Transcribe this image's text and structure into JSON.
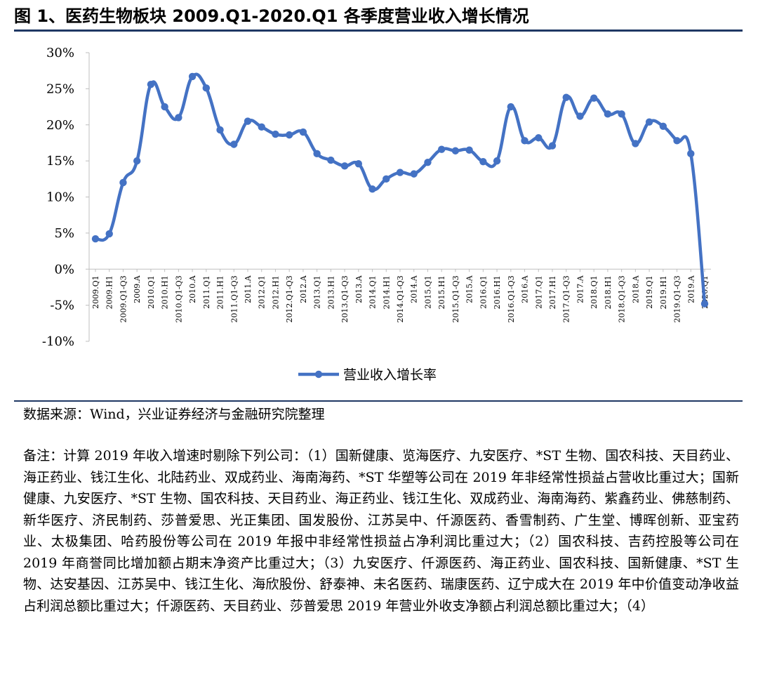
{
  "figure": {
    "title": "图 1、医药生物板块 2009.Q1-2020.Q1 各季度营业收入增长情况",
    "source": "数据来源：Wind，兴业证券经济与金融研究院整理",
    "note": "备注：计算 2019 年收入增速时剔除下列公司：（1）国新健康、览海医疗、九安医疗、*ST 生物、国农科技、天目药业、海正药业、钱江生化、北陆药业、双成药业、海南海药、*ST 华塑等公司在 2019 年非经常性损益占营收比重过大；国新健康、九安医疗、*ST 生物、国农科技、天目药业、海正药业、钱江生化、双成药业、海南海药、紫鑫药业、佛慈制药、新华医疗、济民制药、莎普爱思、光正集团、国发股份、江苏吴中、仟源医药、香雪制药、广生堂、博晖创新、亚宝药业、太极集团、哈药股份等公司在 2019 年报中非经常性损益占净利润比重过大；（2）国农科技、吉药控股等公司在 2019 年商誉同比增加额占期末净资产比重过大；（3）九安医疗、仟源医药、海正药业、国农科技、国新健康、*ST 生物、达安基因、江苏吴中、钱江生化、海欣股份、舒泰神、未名医药、瑞康医药、辽宁成大在 2019 年中价值变动净收益占利润总额比重过大；仟源医药、天目药业、莎普爱思 2019 年营业外收支净额占利润总额比重过大；（4）"
  },
  "chart_data": {
    "type": "line",
    "title": "",
    "xlabel": "",
    "ylabel": "",
    "ylim": [
      -10,
      30
    ],
    "yticks": [
      -10,
      -5,
      0,
      5,
      10,
      15,
      20,
      25,
      30
    ],
    "ytick_labels": [
      "-10%",
      "-5%",
      "0%",
      "5%",
      "10%",
      "15%",
      "20%",
      "25%",
      "30%"
    ],
    "categories": [
      "2009.Q1",
      "2009.H1",
      "2009.Q1-Q3",
      "2009.A",
      "2010.Q1",
      "2010.H1",
      "2010.Q1-Q3",
      "2010.A",
      "2011.Q1",
      "2011.H1",
      "2011.Q1-Q3",
      "2011.A",
      "2012.Q1",
      "2012.H1",
      "2012.Q1-Q3",
      "2012.A",
      "2013.Q1",
      "2013.H1",
      "2013.Q1-Q3",
      "2013.A",
      "2014.Q1",
      "2014.H1",
      "2014.Q1-Q3",
      "2014.A",
      "2015.Q1",
      "2015.H1",
      "2015.Q1-Q3",
      "2015.A",
      "2016.Q1",
      "2016.H1",
      "2016.Q1-Q3",
      "2016.A",
      "2017.Q1",
      "2017.H1",
      "2017.Q1-Q3",
      "2017.A",
      "2018.Q1",
      "2018.H1",
      "2018.Q1-Q3",
      "2018.A",
      "2019.Q1",
      "2019.H1",
      "2019.Q1-Q3",
      "2019.A",
      "2020.Q1"
    ],
    "series": [
      {
        "name": "营业收入增长率",
        "color": "#4472c4",
        "values": [
          4.2,
          4.9,
          12.0,
          15.0,
          25.6,
          22.5,
          21.0,
          26.7,
          25.1,
          19.3,
          17.3,
          20.5,
          19.7,
          18.7,
          18.6,
          19.0,
          16.0,
          15.1,
          14.3,
          14.6,
          11.1,
          12.5,
          13.4,
          13.2,
          14.8,
          16.6,
          16.4,
          16.5,
          14.9,
          15.0,
          22.5,
          17.8,
          18.2,
          17.1,
          23.8,
          21.2,
          23.7,
          21.5,
          21.5,
          17.4,
          20.4,
          19.8,
          17.8,
          16.0,
          -4.8
        ]
      }
    ],
    "legend": "bottom",
    "grid": false
  }
}
